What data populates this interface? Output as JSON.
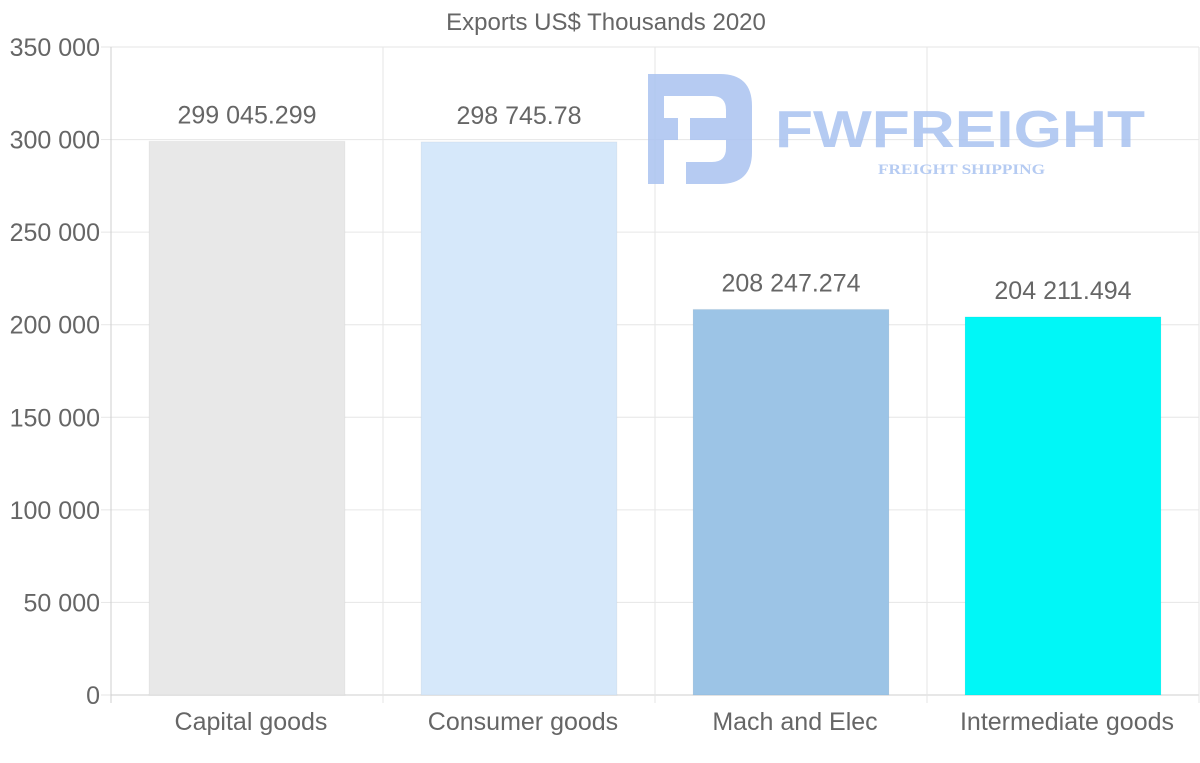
{
  "chart_data": {
    "type": "bar",
    "title": "Exports US$ Thousands 2020",
    "categories": [
      "Capital goods",
      "Consumer goods",
      "Mach and Elec",
      "Intermediate goods"
    ],
    "values": [
      299045.299,
      298745.78,
      208247.274,
      204211.494
    ],
    "value_labels": [
      "299 045.299",
      "298 745.78",
      "208 247.274",
      "204 211.494"
    ],
    "colors": [
      "#e8e8e8",
      "#d6e8fa",
      "#9cc4e6",
      "#00f7f7"
    ],
    "ylim": [
      0,
      350000
    ],
    "yticks": [
      0,
      50000,
      100000,
      150000,
      200000,
      250000,
      300000,
      350000
    ],
    "ytick_labels": [
      "0",
      "50 000",
      "100 000",
      "150 000",
      "200 000",
      "250 000",
      "300 000",
      "350 000"
    ],
    "xlabel": "",
    "ylabel": "",
    "grid": true,
    "legend": "none"
  },
  "watermark": {
    "brand": "FWFREIGHT",
    "tagline": "FREIGHT SHIPPING",
    "color": "#a9c2f0"
  }
}
